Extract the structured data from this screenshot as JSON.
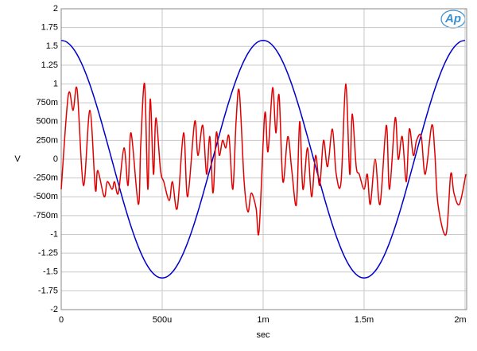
{
  "chart_data": {
    "type": "line",
    "logo": "Ap",
    "xlabel": "sec",
    "ylabel": "V",
    "grid": true,
    "xlim": [
      0,
      0.002008
    ],
    "ylim": [
      -2,
      2
    ],
    "xticks": [
      {
        "value": 0,
        "label": "0"
      },
      {
        "value": 0.0005,
        "label": "500u"
      },
      {
        "value": 0.001,
        "label": "1m"
      },
      {
        "value": 0.0015,
        "label": "1.5m"
      },
      {
        "value": 0.002,
        "label": "2m"
      }
    ],
    "yticks": [
      2,
      1.75,
      1.5,
      1.25,
      1,
      {
        "value": 0.75,
        "label": "750m"
      },
      {
        "value": 0.5,
        "label": "500m"
      },
      {
        "value": 0.25,
        "label": "250m"
      },
      0,
      {
        "value": -0.25,
        "label": "-250m"
      },
      {
        "value": -0.5,
        "label": "-500m"
      },
      {
        "value": -0.75,
        "label": "-750m"
      },
      -1,
      -1.25,
      -1.5,
      -1.75,
      -2
    ],
    "series": [
      {
        "color": "#0000cc",
        "x": [
          0,
          2.5e-05,
          5e-05,
          7.5e-05,
          0.0001,
          0.000125,
          0.00015,
          0.000175,
          0.0002,
          0.000225,
          0.00025,
          0.000275,
          0.0003,
          0.000325,
          0.00035,
          0.000375,
          0.0004,
          0.000425,
          0.00045,
          0.000475,
          0.0005,
          0.000525,
          0.00055,
          0.000575,
          0.0006,
          0.000625,
          0.00065,
          0.000675,
          0.0007,
          0.000725,
          0.00075,
          0.000775,
          0.0008,
          0.000825,
          0.00085,
          0.000875,
          0.0009,
          0.000925,
          0.00095,
          0.000975,
          0.001,
          0.001025,
          0.00105,
          0.001075,
          0.0011,
          0.001125,
          0.00115,
          0.001175,
          0.0012,
          0.001225,
          0.00125,
          0.001275,
          0.0013,
          0.001325,
          0.00135,
          0.001375,
          0.0014,
          0.001425,
          0.00145,
          0.001475,
          0.0015,
          0.001525,
          0.00155,
          0.001575,
          0.0016,
          0.001625,
          0.00165,
          0.001675,
          0.0017,
          0.001725,
          0.00175,
          0.001775,
          0.0018,
          0.001825,
          0.00185,
          0.001875,
          0.0019,
          0.001925,
          0.00195,
          0.001975,
          0.002
        ],
        "values": [
          1.58,
          1.561,
          1.503,
          1.408,
          1.278,
          1.117,
          0.929,
          0.717,
          0.488,
          0.247,
          0,
          -0.247,
          -0.488,
          -0.717,
          -0.929,
          -1.117,
          -1.278,
          -1.408,
          -1.503,
          -1.561,
          -1.58,
          -1.561,
          -1.503,
          -1.408,
          -1.278,
          -1.117,
          -0.929,
          -0.717,
          -0.488,
          -0.247,
          0,
          0.247,
          0.488,
          0.717,
          0.929,
          1.117,
          1.278,
          1.408,
          1.503,
          1.561,
          1.58,
          1.561,
          1.503,
          1.408,
          1.278,
          1.117,
          0.929,
          0.717,
          0.488,
          0.247,
          0,
          -0.247,
          -0.488,
          -0.717,
          -0.929,
          -1.117,
          -1.278,
          -1.408,
          -1.503,
          -1.561,
          -1.58,
          -1.561,
          -1.503,
          -1.408,
          -1.278,
          -1.117,
          -0.929,
          -0.717,
          -0.488,
          -0.247,
          0,
          0.247,
          0.488,
          0.717,
          0.929,
          1.117,
          1.278,
          1.408,
          1.503,
          1.561,
          1.58
        ]
      },
      {
        "color": "#e00000",
        "x": [
          0,
          3.5e-05,
          5.9e-05,
          7.9e-05,
          0.00011,
          0.000142,
          0.000169,
          0.000181,
          0.000213,
          0.000228,
          0.000252,
          0.000264,
          0.000283,
          0.000311,
          0.000331,
          0.000346,
          0.000382,
          0.000394,
          0.000413,
          0.000429,
          0.000441,
          0.000457,
          0.000469,
          0.000492,
          0.000508,
          0.000535,
          0.000551,
          0.000575,
          0.000606,
          0.000626,
          0.000661,
          0.000677,
          0.000701,
          0.00072,
          0.000736,
          0.000752,
          0.000768,
          0.000783,
          0.000799,
          0.000815,
          0.000831,
          0.00085,
          0.000866,
          0.000882,
          0.000906,
          0.000925,
          0.000941,
          0.000965,
          0.00098,
          0.001008,
          0.001024,
          0.001047,
          0.001063,
          0.001079,
          0.001098,
          0.001122,
          0.001142,
          0.001165,
          0.001181,
          0.001197,
          0.00122,
          0.00124,
          0.00126,
          0.00128,
          0.001299,
          0.001319,
          0.001343,
          0.001362,
          0.001386,
          0.001409,
          0.001429,
          0.001441,
          0.001461,
          0.001476,
          0.0015,
          0.001516,
          0.001531,
          0.001555,
          0.001579,
          0.00161,
          0.001626,
          0.001654,
          0.001669,
          0.001689,
          0.001709,
          0.001724,
          0.001744,
          0.00176,
          0.001783,
          0.001803,
          0.001835,
          0.00185,
          0.001866,
          0.001906,
          0.001929,
          0.001945,
          0.001972,
          0.002004
        ],
        "values": [
          -0.4,
          0.85,
          0.65,
          0.92,
          -0.35,
          0.65,
          -0.4,
          -0.15,
          -0.5,
          -0.3,
          -0.4,
          -0.3,
          -0.45,
          0.15,
          -0.35,
          0.35,
          -0.6,
          0.2,
          1.0,
          -0.4,
          0.8,
          -0.2,
          0.55,
          -0.15,
          -0.3,
          -0.55,
          -0.3,
          -0.65,
          0.35,
          -0.5,
          0.5,
          0.05,
          0.45,
          -0.2,
          0.3,
          -0.45,
          0.35,
          0.05,
          0.25,
          0.15,
          0.3,
          -0.4,
          0.5,
          0.9,
          -0.3,
          -0.7,
          -0.45,
          -0.65,
          -0.95,
          0.6,
          0.1,
          0.95,
          0.35,
          0.85,
          -0.3,
          0.3,
          -0.15,
          -0.6,
          0.5,
          -0.4,
          0.15,
          -0.5,
          0.05,
          -0.35,
          0.25,
          -0.1,
          0.4,
          -0.2,
          -0.3,
          1.0,
          -0.2,
          0.6,
          -0.1,
          -0.2,
          -0.4,
          -0.2,
          -0.6,
          0.0,
          -0.6,
          0.45,
          -0.4,
          0.55,
          0.0,
          0.3,
          -0.3,
          0.4,
          0.05,
          0.25,
          0.3,
          -0.2,
          0.45,
          0.1,
          -0.6,
          -1.0,
          -0.2,
          -0.45,
          -0.6,
          -0.2
        ]
      }
    ]
  }
}
